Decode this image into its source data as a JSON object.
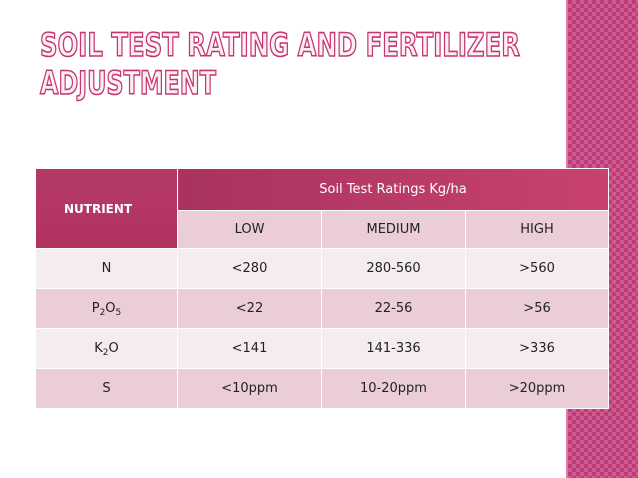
{
  "header": {
    "title": [
      "SOIL TEST RATING AND FERTILIZER",
      "ADJUSTMENT"
    ]
  },
  "table": {
    "corner": "NUTRIENT",
    "group_header": "Soil Test Ratings  Kg/ha",
    "columns": [
      "LOW",
      "MEDIUM",
      "HIGH"
    ],
    "rows": [
      [
        "N",
        "<280",
        "280-560",
        ">560"
      ],
      [
        "P2O5",
        "<22",
        "22-56",
        ">56"
      ],
      [
        "K2O",
        "<141",
        "141-336",
        ">336"
      ],
      [
        "S",
        "<10ppm",
        "10-20ppm",
        ">20ppm"
      ]
    ]
  }
}
